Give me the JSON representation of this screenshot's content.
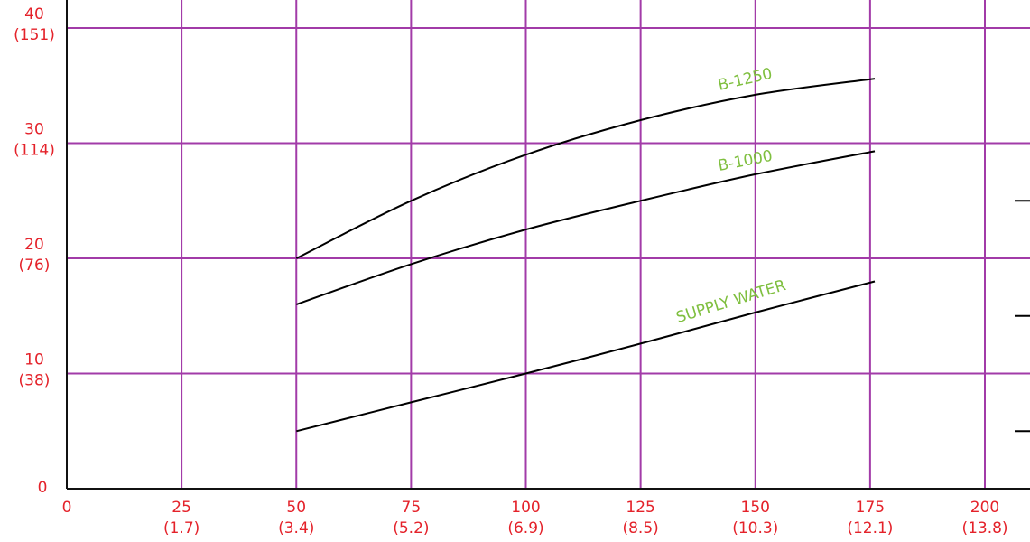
{
  "chart_data": {
    "type": "line",
    "xlim": [
      0,
      210
    ],
    "ylim": [
      0,
      42
    ],
    "grid": true,
    "x_ticks": [
      {
        "value": 0,
        "primary": "0",
        "secondary": ""
      },
      {
        "value": 25,
        "primary": "25",
        "secondary": "(1.7)"
      },
      {
        "value": 50,
        "primary": "50",
        "secondary": "(3.4)"
      },
      {
        "value": 75,
        "primary": "75",
        "secondary": "(5.2)"
      },
      {
        "value": 100,
        "primary": "100",
        "secondary": "(6.9)"
      },
      {
        "value": 125,
        "primary": "125",
        "secondary": "(8.5)"
      },
      {
        "value": 150,
        "primary": "150",
        "secondary": "(10.3)"
      },
      {
        "value": 175,
        "primary": "175",
        "secondary": "(12.1)"
      },
      {
        "value": 200,
        "primary": "200",
        "secondary": "(13.8)"
      }
    ],
    "y_ticks": [
      {
        "value": 0,
        "primary": "0",
        "secondary": ""
      },
      {
        "value": 10,
        "primary": "10",
        "secondary": "(38)"
      },
      {
        "value": 20,
        "primary": "20",
        "secondary": "(76)"
      },
      {
        "value": 30,
        "primary": "30",
        "secondary": "(114)"
      },
      {
        "value": 40,
        "primary": "40",
        "secondary": "(151)"
      }
    ],
    "series": [
      {
        "name": "B-1250",
        "x": [
          50,
          75,
          100,
          125,
          150,
          176
        ],
        "y": [
          20,
          25,
          29,
          32,
          34.2,
          35.6
        ]
      },
      {
        "name": "B-1000",
        "x": [
          50,
          75,
          100,
          125,
          150,
          176
        ],
        "y": [
          16,
          19.5,
          22.5,
          25,
          27.3,
          29.3
        ]
      },
      {
        "name": "SUPPLY WATER",
        "x": [
          50,
          75,
          100,
          125,
          150,
          176
        ],
        "y": [
          5,
          7.5,
          10,
          12.6,
          15.3,
          18
        ]
      }
    ],
    "side_ticks_y": [
      5,
      15,
      25
    ]
  },
  "colors": {
    "tick_text": "#e4222a",
    "grid": "#a23ba8",
    "curve_label": "#7fbf3f",
    "line": "#000000"
  }
}
